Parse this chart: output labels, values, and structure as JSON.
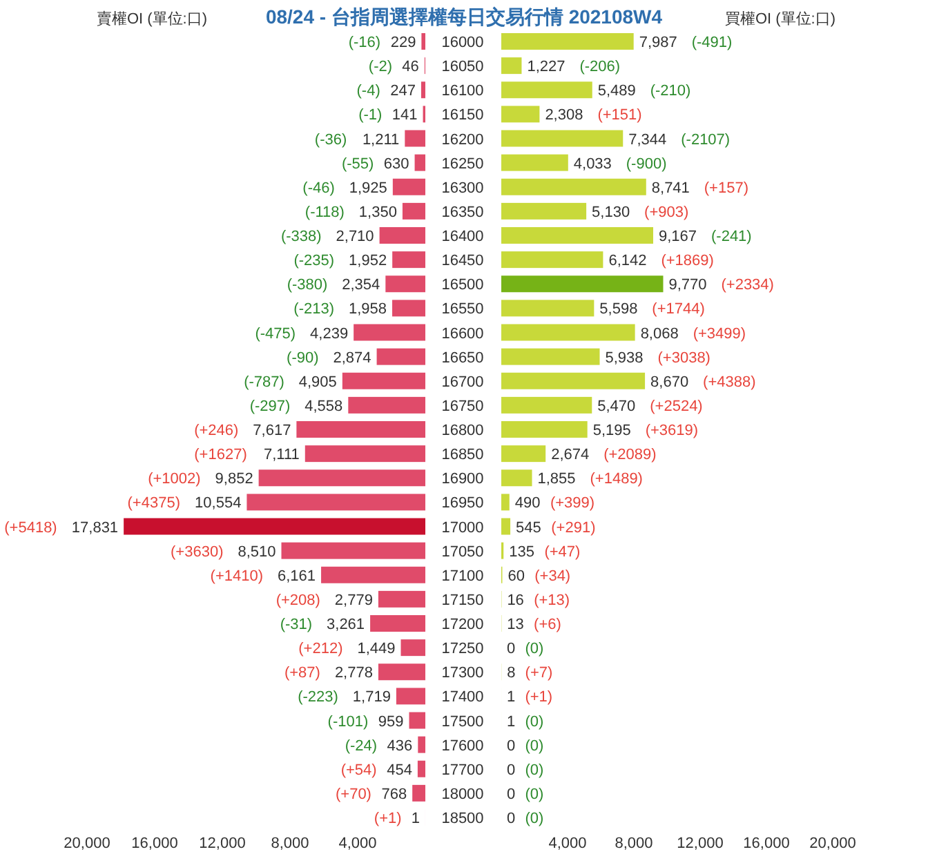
{
  "chart_data": [
    {
      "type": "bar",
      "orientation": "horizontal",
      "title": "08/24 - 台指周選擇權每日交易行情 202108W4",
      "subtitle": "賣權OI (單位:口)",
      "categories": [
        "16000",
        "16050",
        "16100",
        "16150",
        "16200",
        "16250",
        "16300",
        "16350",
        "16400",
        "16450",
        "16500",
        "16550",
        "16600",
        "16650",
        "16700",
        "16750",
        "16800",
        "16850",
        "16900",
        "16950",
        "17000",
        "17050",
        "17100",
        "17150",
        "17200",
        "17250",
        "17300",
        "17400",
        "17500",
        "17600",
        "17700",
        "18000",
        "18500"
      ],
      "values": [
        229,
        46,
        247,
        141,
        1211,
        630,
        1925,
        1350,
        2710,
        1952,
        2354,
        1958,
        4239,
        2874,
        4905,
        4558,
        7617,
        7111,
        9852,
        10554,
        17831,
        8510,
        6161,
        2779,
        3261,
        1449,
        2778,
        1719,
        959,
        436,
        454,
        768,
        1
      ],
      "value_labels": [
        "229",
        "46",
        "247",
        "141",
        "1,211",
        "630",
        "1,925",
        "1,350",
        "2,710",
        "1,952",
        "2,354",
        "1,958",
        "4,239",
        "2,874",
        "4,905",
        "4,558",
        "7,617",
        "7,111",
        "9,852",
        "10,554",
        "17,831",
        "8,510",
        "6,161",
        "2,779",
        "3,261",
        "1,449",
        "2,778",
        "1,719",
        "959",
        "436",
        "454",
        "768",
        "1"
      ],
      "colors": [
        "#e04b6a",
        "#e04b6a",
        "#e04b6a",
        "#e04b6a",
        "#e04b6a",
        "#e04b6a",
        "#e04b6a",
        "#e04b6a",
        "#e04b6a",
        "#e04b6a",
        "#e04b6a",
        "#e04b6a",
        "#e04b6a",
        "#e04b6a",
        "#e04b6a",
        "#e04b6a",
        "#e04b6a",
        "#e04b6a",
        "#e04b6a",
        "#e04b6a",
        "#c8102e",
        "#e04b6a",
        "#e04b6a",
        "#e04b6a",
        "#e04b6a",
        "#e04b6a",
        "#e04b6a",
        "#e04b6a",
        "#e04b6a",
        "#e04b6a",
        "#e04b6a",
        "#e04b6a",
        "#e04b6a"
      ],
      "xlim": [
        20000,
        0
      ],
      "xticks": [
        {
          "value": 20000,
          "label": "20,000"
        },
        {
          "value": 16000,
          "label": "16,000"
        },
        {
          "value": 12000,
          "label": "12,000"
        },
        {
          "value": 8000,
          "label": "8,000"
        },
        {
          "value": 4000,
          "label": "4,000"
        }
      ],
      "annotations": [
        "(-16)",
        "(-2)",
        "(-4)",
        "(-1)",
        "(-36)",
        "(-55)",
        "(-46)",
        "(-118)",
        "(-338)",
        "(-235)",
        "(-380)",
        "(-213)",
        "(-475)",
        "(-90)",
        "(-787)",
        "(-297)",
        "(+246)",
        "(+1627)",
        "(+1002)",
        "(+4375)",
        "(+5418)",
        "(+3630)",
        "(+1410)",
        "(+208)",
        "(-31)",
        "(+212)",
        "(+87)",
        "(-223)",
        "(-101)",
        "(-24)",
        "(+54)",
        "(+70)",
        "(+1)"
      ]
    },
    {
      "type": "bar",
      "orientation": "horizontal",
      "subtitle": "買權OI (單位:口)",
      "categories": [
        null,
        null,
        null,
        null,
        null,
        null,
        null,
        null,
        null,
        null,
        null,
        null,
        null,
        null,
        null,
        null,
        null,
        null,
        null,
        null,
        null,
        null,
        null,
        null,
        null,
        null,
        null,
        null,
        null,
        null,
        null,
        null,
        null
      ],
      "values": [
        7987,
        1227,
        5489,
        2308,
        7344,
        4033,
        8741,
        5130,
        9167,
        6142,
        9770,
        5598,
        8068,
        5938,
        8670,
        5470,
        5195,
        2674,
        1855,
        490,
        545,
        135,
        60,
        16,
        13,
        0,
        8,
        1,
        1,
        0,
        0,
        0,
        0
      ],
      "value_labels": [
        "7,987",
        "1,227",
        "5,489",
        "2,308",
        "7,344",
        "4,033",
        "8,741",
        "5,130",
        "9,167",
        "6,142",
        "9,770",
        "5,598",
        "8,068",
        "5,938",
        "8,670",
        "5,470",
        "5,195",
        "2,674",
        "1,855",
        "490",
        "545",
        "135",
        "60",
        "16",
        "13",
        "0",
        "8",
        "1",
        "1",
        "0",
        "0",
        "0",
        "0"
      ],
      "colors": [
        "#c8d93a",
        "#c8d93a",
        "#c8d93a",
        "#c8d93a",
        "#c8d93a",
        "#c8d93a",
        "#c8d93a",
        "#c8d93a",
        "#c8d93a",
        "#c8d93a",
        "#76b317",
        "#c8d93a",
        "#c8d93a",
        "#c8d93a",
        "#c8d93a",
        "#c8d93a",
        "#c8d93a",
        "#c8d93a",
        "#c8d93a",
        "#c8d93a",
        "#c8d93a",
        "#c8d93a",
        "#c8d93a",
        "#c8d93a",
        "#c8d93a",
        "#c8d93a",
        "#c8d93a",
        "#c8d93a",
        "#c8d93a",
        "#c8d93a",
        "#c8d93a",
        "#c8d93a",
        "#c8d93a"
      ],
      "xlim": [
        0,
        20000
      ],
      "xticks": [
        {
          "value": 4000,
          "label": "4,000"
        },
        {
          "value": 8000,
          "label": "8,000"
        },
        {
          "value": 12000,
          "label": "12,000"
        },
        {
          "value": 16000,
          "label": "16,000"
        },
        {
          "value": 20000,
          "label": "20,000"
        }
      ],
      "annotations": [
        "(-491)",
        "(-206)",
        "(-210)",
        "(+151)",
        "(-2107)",
        "(-900)",
        "(+157)",
        "(+903)",
        "(-241)",
        "(+1869)",
        "(+2334)",
        "(+1744)",
        "(+3499)",
        "(+3038)",
        "(+4388)",
        "(+2524)",
        "(+3619)",
        "(+2089)",
        "(+1489)",
        "(+399)",
        "(+291)",
        "(+47)",
        "(+34)",
        "(+13)",
        "(+6)",
        "(0)",
        "(+7)",
        "(+1)",
        "(0)",
        "(0)",
        "(0)",
        "(0)",
        "(0)"
      ]
    }
  ]
}
